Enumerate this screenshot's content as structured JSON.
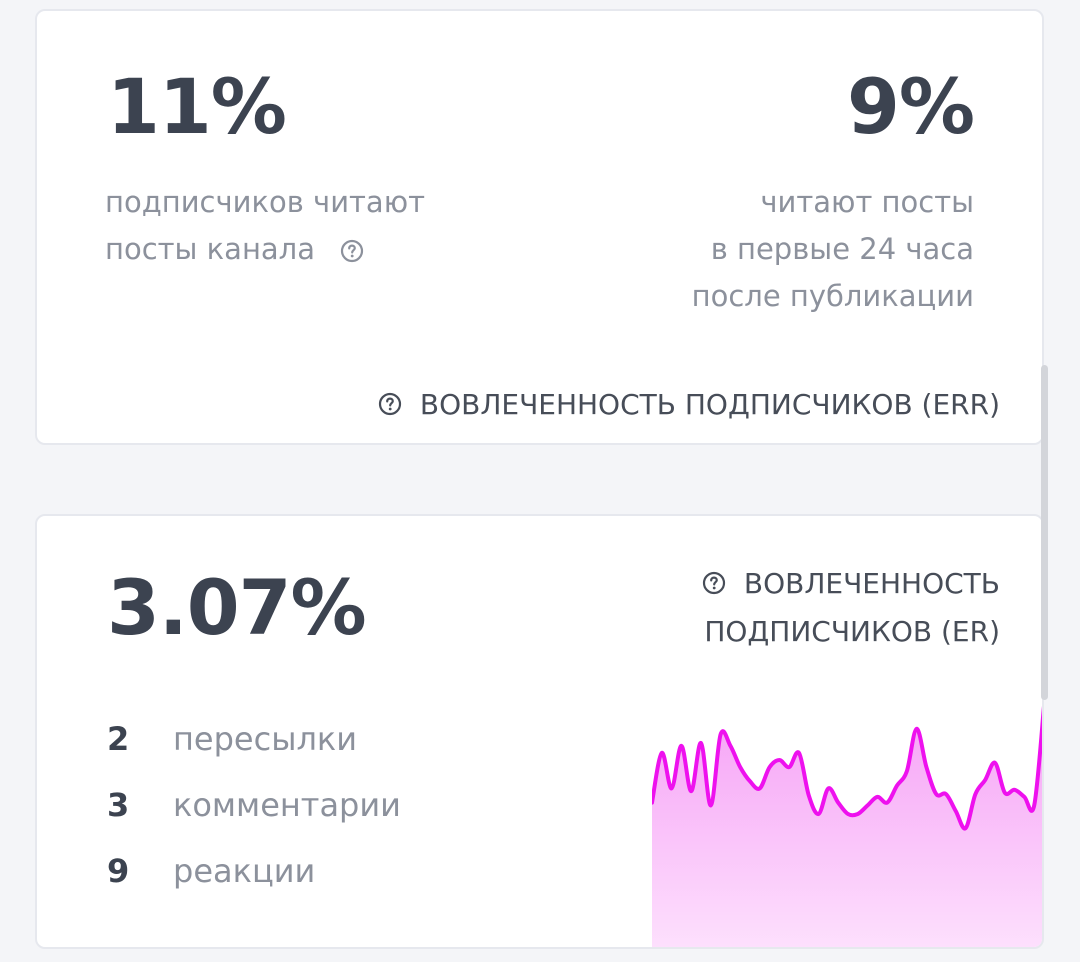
{
  "err_card": {
    "value_left": "11%",
    "desc_left": [
      "подписчиков читают",
      "посты канала"
    ],
    "value_right": "9%",
    "desc_right": [
      "читают посты",
      "в первые 24 часа",
      "после публикации"
    ],
    "title": "ВОВЛЕЧЕННОСТЬ ПОДПИСЧИКОВ (ERR)"
  },
  "er_card": {
    "value": "3.07%",
    "title_lines": [
      "ВОВЛЕЧЕННОСТЬ",
      "ПОДПИСЧИКОВ (ER)"
    ],
    "stats": [
      {
        "count": "2",
        "label": "пересылки"
      },
      {
        "count": "3",
        "label": "комментарии"
      },
      {
        "count": "9",
        "label": "реакции"
      }
    ]
  },
  "chart_data": {
    "type": "area",
    "values": [
      0.2,
      0.55,
      0.3,
      0.6,
      0.28,
      0.62,
      0.18,
      0.68,
      0.6,
      0.45,
      0.35,
      0.3,
      0.45,
      0.5,
      0.45,
      0.55,
      0.25,
      0.12,
      0.3,
      0.2,
      0.12,
      0.12,
      0.18,
      0.24,
      0.2,
      0.32,
      0.42,
      0.72,
      0.45,
      0.26,
      0.26,
      0.14,
      0.02,
      0.26,
      0.36,
      0.48,
      0.27,
      0.29,
      0.24,
      0.18,
      0.88
    ],
    "colors": {
      "line": "#ee11ee",
      "fill_top": "#f6a2f6",
      "fill_bottom": "#fde0fd"
    }
  }
}
